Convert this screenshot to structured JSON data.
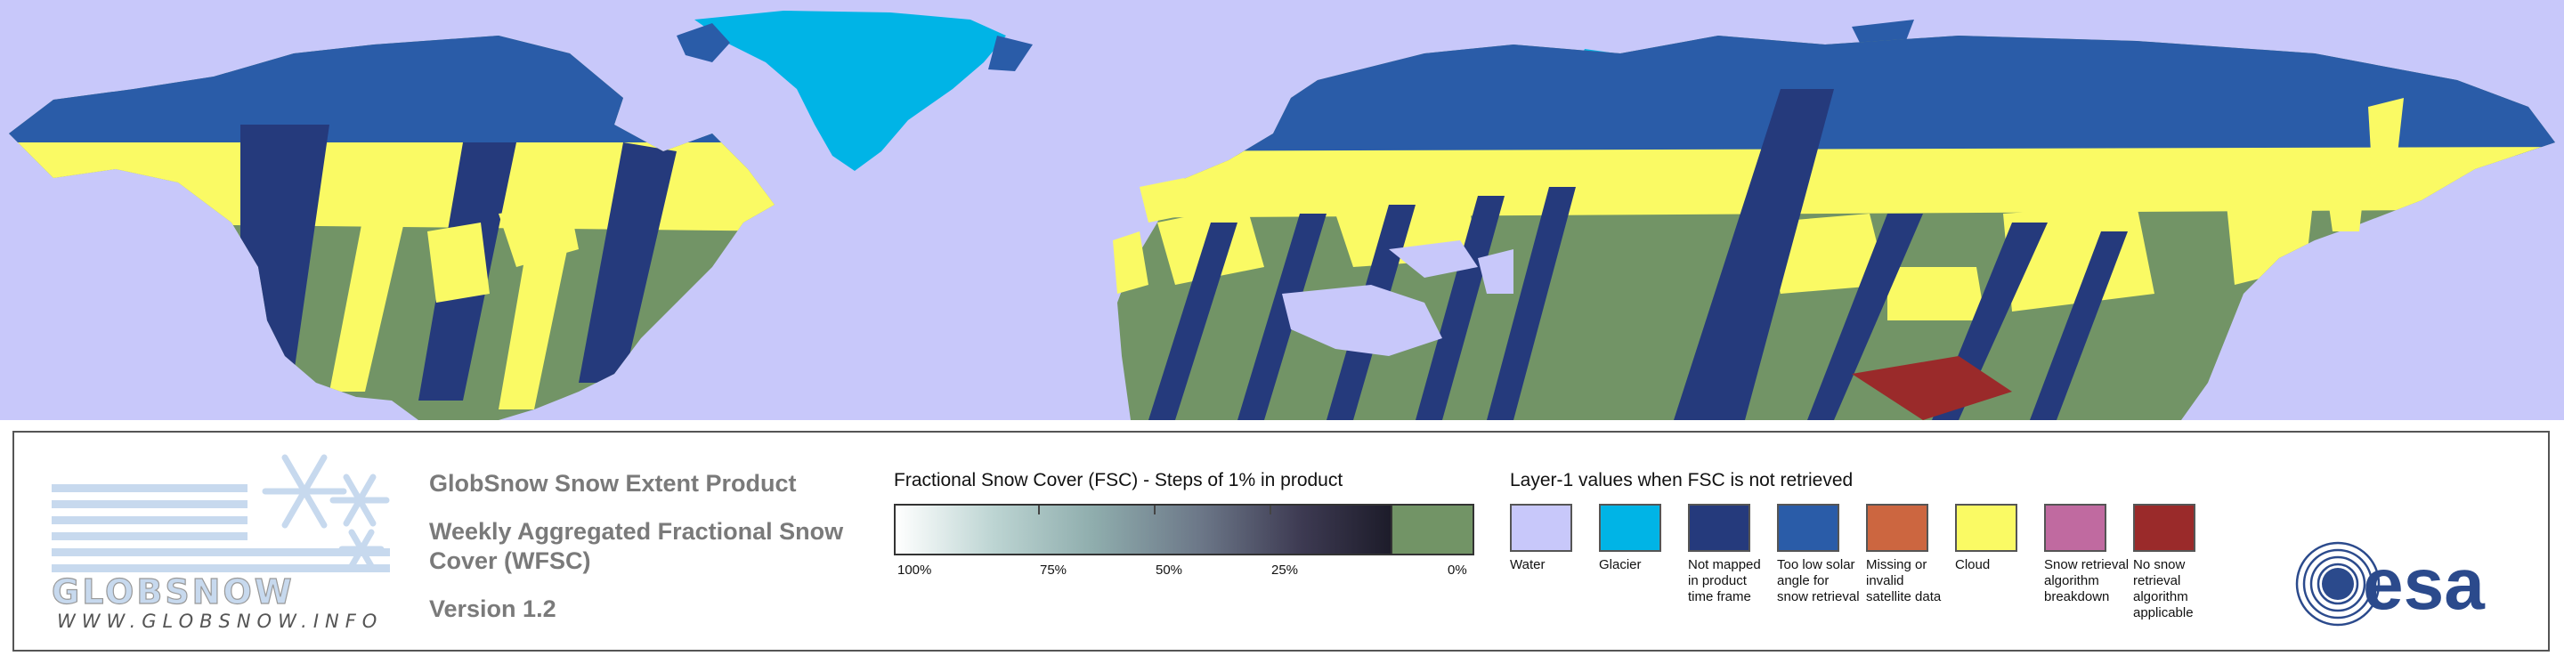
{
  "colors": {
    "water": "#c8c8fa",
    "glacier": "#00b4e6",
    "not_mapped": "#253a7c",
    "low_sun": "#2a5ca8",
    "missing": "#cc6640",
    "cloud": "#fafa64",
    "retrieval_breakdown": "#c06aa0",
    "no_retrieval": "#9a2a2a",
    "fsc_zero": "#729466"
  },
  "logo": {
    "brand": "GLOBSNOW",
    "website": "WWW.GLOBSNOW.INFO"
  },
  "titles": {
    "product": "GlobSnow Snow Extent Product",
    "subtitle": "Weekly Aggregated Fractional Snow Cover (WFSC)",
    "version": "Version 1.2"
  },
  "fsc_legend": {
    "title": "Fractional Snow Cover (FSC) - Steps of 1% in product",
    "labels": [
      "100%",
      "75%",
      "50%",
      "25%",
      "0%"
    ]
  },
  "layer_legend": {
    "title": "Layer-1 values when FSC is not retrieved",
    "items": [
      {
        "label": "Water",
        "color": "#c8c8fa"
      },
      {
        "label": "Glacier",
        "color": "#00b4e6"
      },
      {
        "label": "Not mapped in product time frame",
        "color": "#253a7c"
      },
      {
        "label": "Too low solar angle for snow retrieval",
        "color": "#2a5ca8"
      },
      {
        "label": "Missing or invalid satellite data",
        "color": "#cc6640"
      },
      {
        "label": "Cloud",
        "color": "#fafa64"
      },
      {
        "label": "Snow retrieval algorithm breakdown",
        "color": "#c06aa0"
      },
      {
        "label": "No snow retrieval algorithm applicable",
        "color": "#9a2a2a"
      }
    ]
  },
  "esa": {
    "text": "esa"
  }
}
